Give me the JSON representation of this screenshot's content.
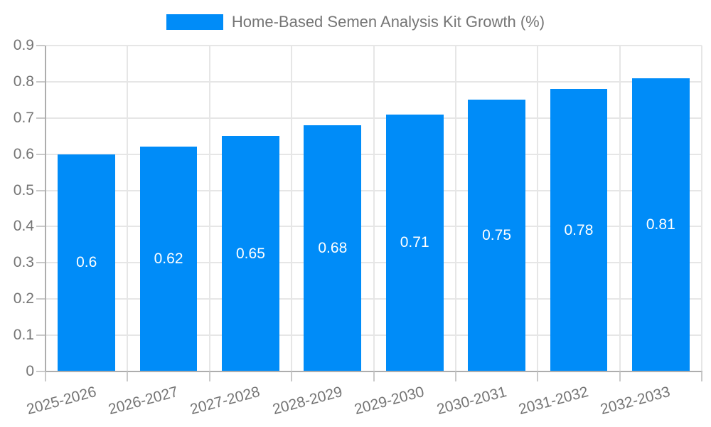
{
  "chart_data": {
    "type": "bar",
    "title": "Home-Based Semen Analysis Kit Growth (%)",
    "legend": {
      "label": "Home-Based Semen Analysis Kit Growth (%)",
      "position": "top-center"
    },
    "categories": [
      "2025-2026",
      "2026-2027",
      "2027-2028",
      "2028-2029",
      "2029-2030",
      "2030-2031",
      "2031-2032",
      "2032-2033"
    ],
    "values": [
      0.6,
      0.62,
      0.65,
      0.68,
      0.71,
      0.75,
      0.78,
      0.81
    ],
    "data_labels": [
      "0.6",
      "0.62",
      "0.65",
      "0.68",
      "0.71",
      "0.75",
      "0.78",
      "0.81"
    ],
    "xlabel": "",
    "ylabel": "",
    "ylim": [
      0,
      0.9
    ],
    "ytick_values": [
      0,
      0.1,
      0.2,
      0.3,
      0.4,
      0.5,
      0.6,
      0.7,
      0.8,
      0.9
    ],
    "ytick_labels": [
      "0",
      "0.1",
      "0.2",
      "0.3",
      "0.4",
      "0.5",
      "0.6",
      "0.7",
      "0.8",
      "0.9"
    ],
    "grid": {
      "horizontal": true,
      "vertical": true
    },
    "x_label_rotation_deg": -15,
    "data_label_position": "center-of-bar",
    "colors": {
      "bar": "#008CF8",
      "axis_text": "#757575",
      "data_label_text": "#FFFFFF",
      "gridline": "#E6E6E6",
      "axis_line": "#ADADAD",
      "tick_mark": "#C9C9C9",
      "background": "#FFFFFF"
    }
  }
}
